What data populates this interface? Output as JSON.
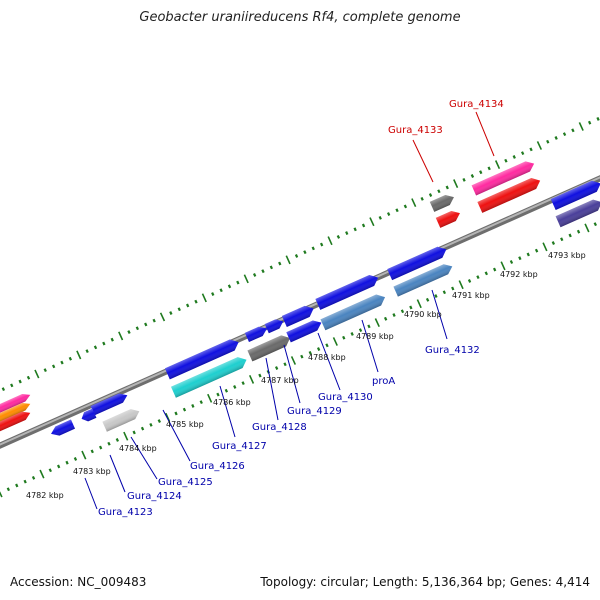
{
  "title": "Geobacter uraniireducens Rf4, complete genome",
  "footer": {
    "accession": "Accession: NC_009483",
    "summary": "Topology: circular; Length: 5,136,364 bp; Genes: 4,414"
  },
  "colors": {
    "backbone": "#8f8f8f",
    "tick": "#1f7a1f",
    "label_blue": "#0000aa",
    "label_red": "#cc0000",
    "gene_blue": "#1010e0",
    "gene_steel": "#4a84c0",
    "gene_cyan": "#1ecfcf",
    "gene_gray": "#6a6a6a",
    "gene_lightgray": "#c8c8c8",
    "gene_red": "#ee1111",
    "gene_pink": "#ff2aa0",
    "gene_orange": "#ff8c00",
    "gene_purple": "#4a3f9a"
  },
  "scale_labels": [
    "4782 kbp",
    "4783 kbp",
    "4784 kbp",
    "4785 kbp",
    "4786 kbp",
    "4787 kbp",
    "4788 kbp",
    "4789 kbp",
    "4790 kbp",
    "4791 kbp",
    "4792 kbp",
    "4793 kbp"
  ],
  "gene_labels": [
    {
      "text": "Gura_4123",
      "color": "blue"
    },
    {
      "text": "Gura_4124",
      "color": "blue"
    },
    {
      "text": "Gura_4125",
      "color": "blue"
    },
    {
      "text": "Gura_4126",
      "color": "blue"
    },
    {
      "text": "Gura_4127",
      "color": "blue"
    },
    {
      "text": "Gura_4128",
      "color": "blue"
    },
    {
      "text": "Gura_4129",
      "color": "blue"
    },
    {
      "text": "Gura_4130",
      "color": "blue"
    },
    {
      "text": "proA",
      "color": "blue"
    },
    {
      "text": "Gura_4132",
      "color": "blue"
    },
    {
      "text": "Gura_4133",
      "color": "red"
    },
    {
      "text": "Gura_4134",
      "color": "red"
    }
  ]
}
